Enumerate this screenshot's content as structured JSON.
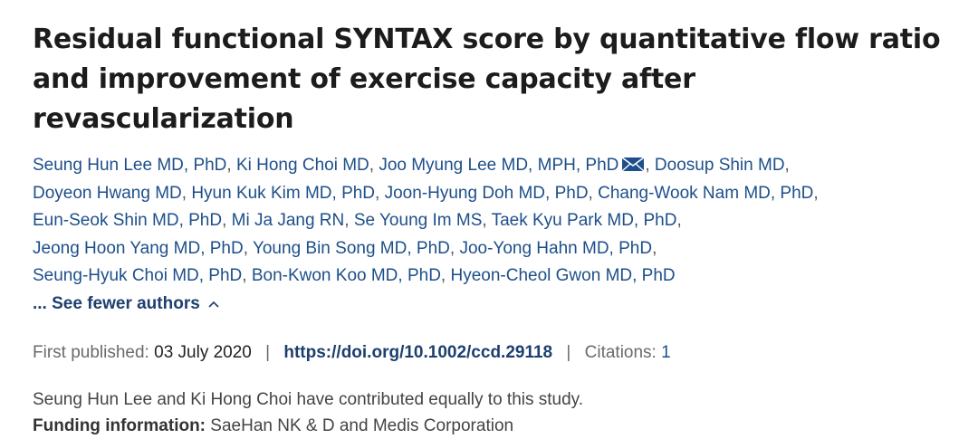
{
  "article": {
    "title": "Residual functional SYNTAX score by quantitative flow ratio and improvement of exercise capacity after revascularization"
  },
  "authors": [
    {
      "name": "Seung Hun Lee MD, PhD",
      "email": false
    },
    {
      "name": "Ki Hong Choi MD",
      "email": false
    },
    {
      "name": "Joo Myung Lee MD, MPH, PhD",
      "email": true
    },
    {
      "name": "Doosup Shin MD",
      "email": false
    },
    {
      "name": "Doyeon Hwang MD",
      "email": false
    },
    {
      "name": "Hyun Kuk Kim MD, PhD",
      "email": false
    },
    {
      "name": "Joon-Hyung Doh MD, PhD",
      "email": false
    },
    {
      "name": "Chang-Wook Nam MD, PhD",
      "email": false
    },
    {
      "name": "Eun-Seok Shin MD, PhD",
      "email": false
    },
    {
      "name": "Mi Ja Jang RN",
      "email": false
    },
    {
      "name": "Se Young Im MS",
      "email": false
    },
    {
      "name": "Taek Kyu Park MD, PhD",
      "email": false
    },
    {
      "name": "Jeong Hoon Yang MD, PhD",
      "email": false
    },
    {
      "name": "Young Bin Song MD, PhD",
      "email": false
    },
    {
      "name": "Joo-Yong Hahn MD, PhD",
      "email": false
    },
    {
      "name": "Seung-Hyuk Choi MD, PhD",
      "email": false
    },
    {
      "name": "Bon-Kwon Koo MD, PhD",
      "email": false
    },
    {
      "name": "Hyeon-Cheol Gwon MD, PhD",
      "email": false
    }
  ],
  "author_line_breaks_after": [
    3,
    7,
    11,
    14
  ],
  "toggle": {
    "label": "... See fewer authors",
    "icon": "chevron-up-icon"
  },
  "meta": {
    "published_label": "First published:",
    "published_date": "03 July 2020",
    "doi": "https://doi.org/10.1002/ccd.29118",
    "citations_label": "Citations:",
    "citations_count": "1"
  },
  "notes": {
    "contribution": "Seung Hun Lee and Ki Hong Choi have contributed equally to this study.",
    "funding_label": "Funding information:",
    "funding_value": "SaeHan NK & D and Medis Corporation"
  },
  "colors": {
    "link": "#1d4f8a",
    "doi": "#1d3f6e",
    "muted": "#6a6a6a"
  }
}
